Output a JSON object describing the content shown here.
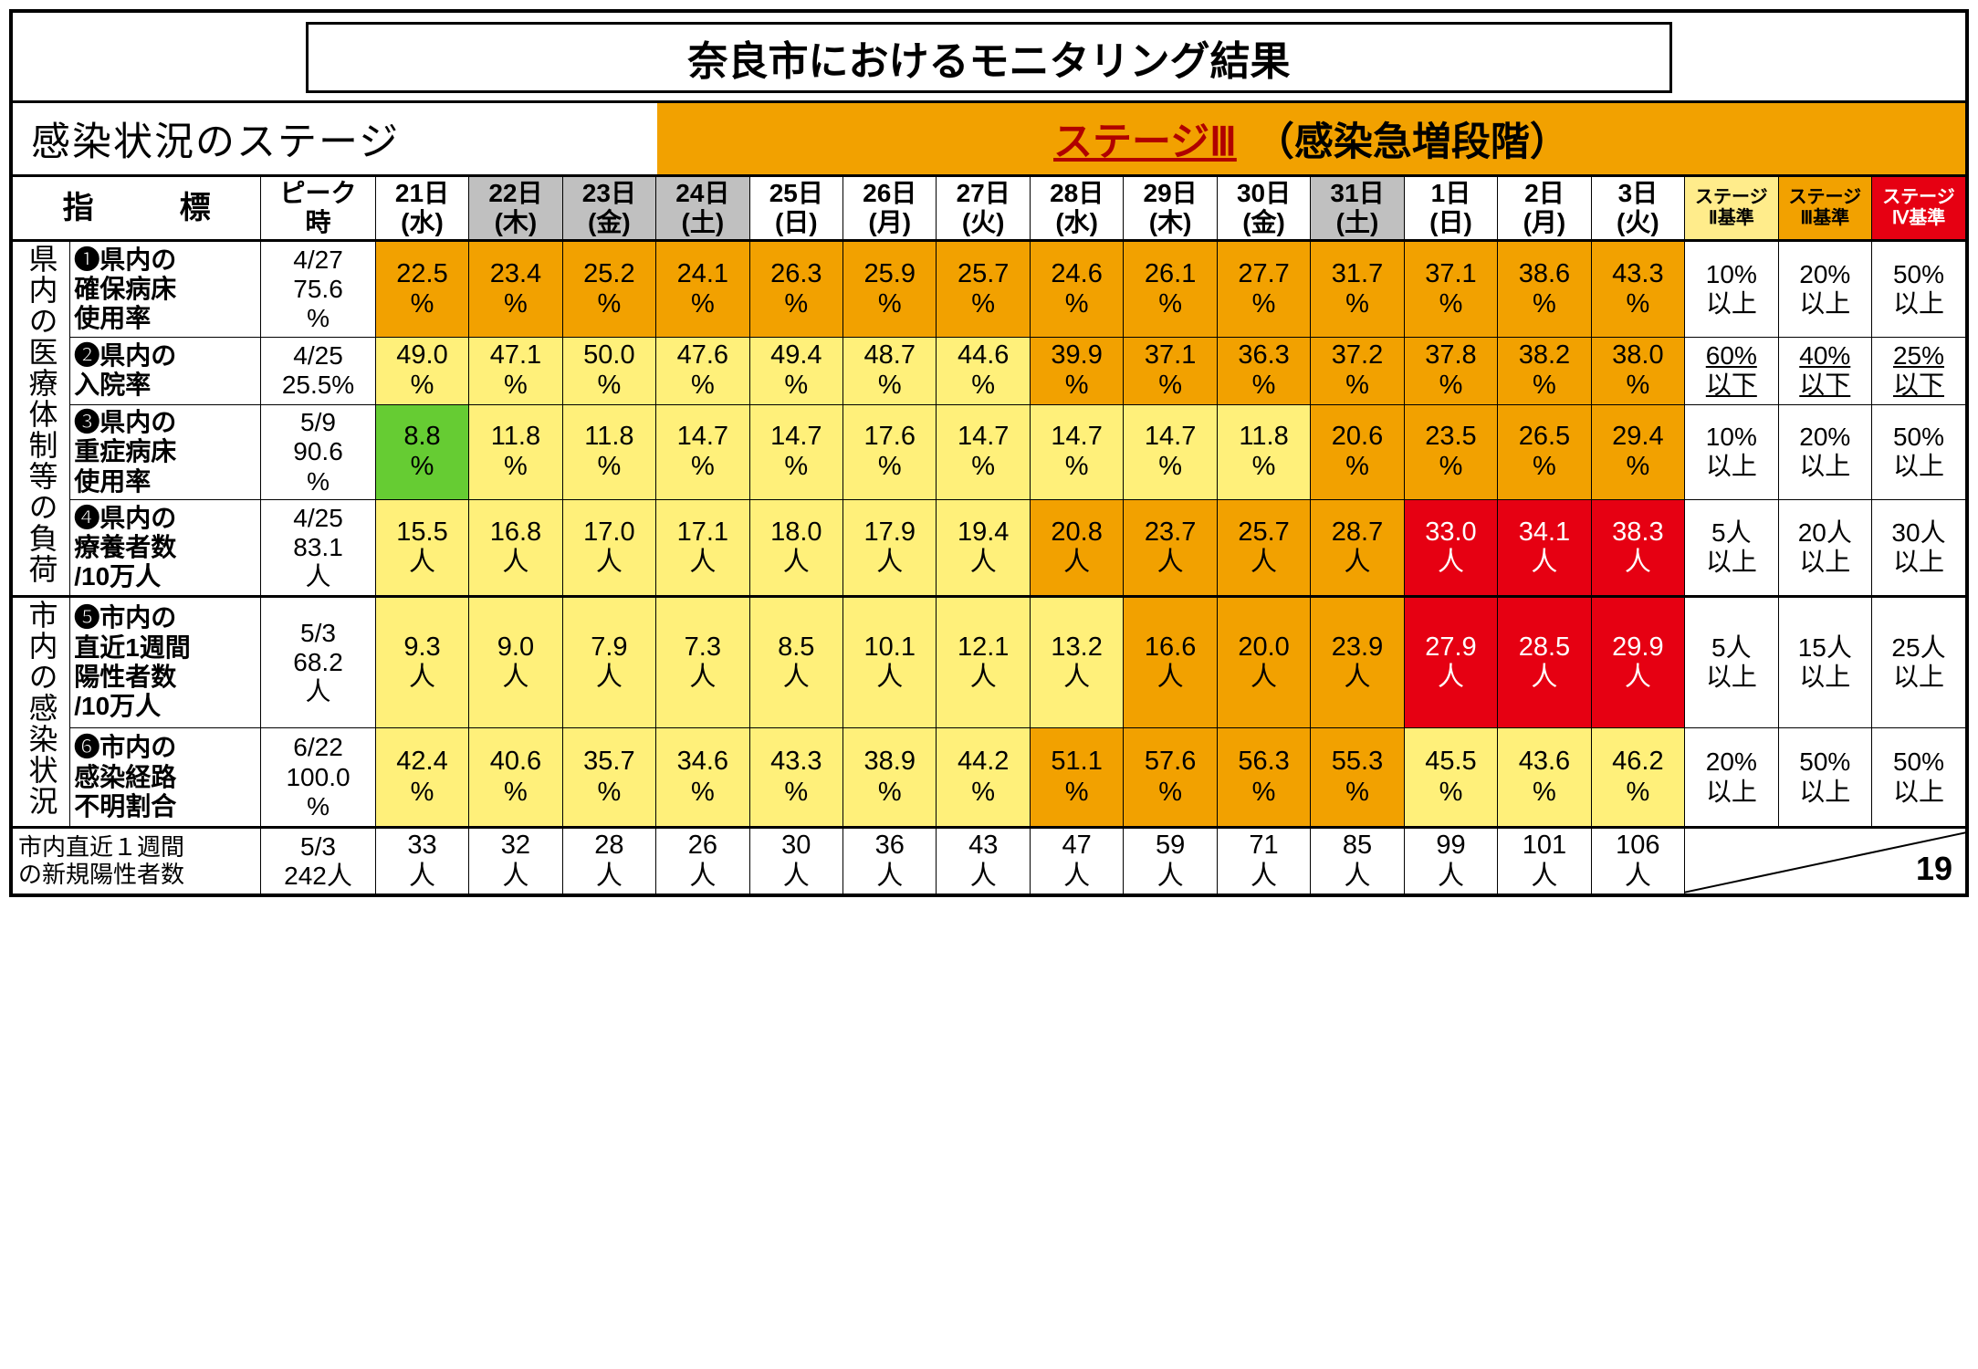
{
  "title": "奈良市におけるモニタリング結果",
  "stage": {
    "left_label": "感染状況のステージ",
    "main": "ステージⅢ",
    "sub": "（感染急増段階）"
  },
  "colors": {
    "green": "#66cc33",
    "yellow": "#fff07a",
    "orange": "#f2a100",
    "red": "#e60012",
    "gray": "#c0c0c0",
    "stg2": "#ffec8b",
    "stg3": "#f2a100",
    "stg4": "#e60012"
  },
  "headers": {
    "indicator": "指　標",
    "peak": "ピーク時",
    "days": [
      {
        "top": "21日",
        "bot": "(水)",
        "gray": false
      },
      {
        "top": "22日",
        "bot": "(木)",
        "gray": true
      },
      {
        "top": "23日",
        "bot": "(金)",
        "gray": true
      },
      {
        "top": "24日",
        "bot": "(土)",
        "gray": true
      },
      {
        "top": "25日",
        "bot": "(日)",
        "gray": false
      },
      {
        "top": "26日",
        "bot": "(月)",
        "gray": false
      },
      {
        "top": "27日",
        "bot": "(火)",
        "gray": false
      },
      {
        "top": "28日",
        "bot": "(水)",
        "gray": false
      },
      {
        "top": "29日",
        "bot": "(木)",
        "gray": false
      },
      {
        "top": "30日",
        "bot": "(金)",
        "gray": false
      },
      {
        "top": "31日",
        "bot": "(土)",
        "gray": true
      },
      {
        "top": "1日",
        "bot": "(日)",
        "gray": false
      },
      {
        "top": "2日",
        "bot": "(月)",
        "gray": false
      },
      {
        "top": "3日",
        "bot": "(火)",
        "gray": false
      }
    ],
    "stages": [
      {
        "t1": "ステージ",
        "t2": "Ⅱ基準"
      },
      {
        "t1": "ステージ",
        "t2": "Ⅲ基準"
      },
      {
        "t1": "ステージ",
        "t2": "Ⅳ基準"
      }
    ]
  },
  "groups": [
    {
      "label": "県内の医療体制等の負荷",
      "rowspan": 4
    },
    {
      "label": "市内の感染状況",
      "rowspan": 2
    }
  ],
  "rows": [
    {
      "num": "❶",
      "label": "県内の確保病床使用率",
      "peak": "4/27\n75.6\n%",
      "cells": [
        {
          "v": "22.5",
          "u": "%",
          "c": "orange"
        },
        {
          "v": "23.4",
          "u": "%",
          "c": "orange"
        },
        {
          "v": "25.2",
          "u": "%",
          "c": "orange"
        },
        {
          "v": "24.1",
          "u": "%",
          "c": "orange"
        },
        {
          "v": "26.3",
          "u": "%",
          "c": "orange"
        },
        {
          "v": "25.9",
          "u": "%",
          "c": "orange"
        },
        {
          "v": "25.7",
          "u": "%",
          "c": "orange"
        },
        {
          "v": "24.6",
          "u": "%",
          "c": "orange"
        },
        {
          "v": "26.1",
          "u": "%",
          "c": "orange"
        },
        {
          "v": "27.7",
          "u": "%",
          "c": "orange"
        },
        {
          "v": "31.7",
          "u": "%",
          "c": "orange"
        },
        {
          "v": "37.1",
          "u": "%",
          "c": "orange"
        },
        {
          "v": "38.6",
          "u": "%",
          "c": "orange"
        },
        {
          "v": "43.3",
          "u": "%",
          "c": "orange"
        }
      ],
      "criteria": [
        "10%\n以上",
        "20%\n以上",
        "50%\n以上"
      ]
    },
    {
      "num": "❷",
      "label": "県内の入院率",
      "peak": "4/25\n25.5%",
      "cells": [
        {
          "v": "49.0",
          "u": "%",
          "c": "yellow"
        },
        {
          "v": "47.1",
          "u": "%",
          "c": "yellow"
        },
        {
          "v": "50.0",
          "u": "%",
          "c": "yellow"
        },
        {
          "v": "47.6",
          "u": "%",
          "c": "yellow"
        },
        {
          "v": "49.4",
          "u": "%",
          "c": "yellow"
        },
        {
          "v": "48.7",
          "u": "%",
          "c": "yellow"
        },
        {
          "v": "44.6",
          "u": "%",
          "c": "yellow"
        },
        {
          "v": "39.9",
          "u": "%",
          "c": "orange"
        },
        {
          "v": "37.1",
          "u": "%",
          "c": "orange"
        },
        {
          "v": "36.3",
          "u": "%",
          "c": "orange"
        },
        {
          "v": "37.2",
          "u": "%",
          "c": "orange"
        },
        {
          "v": "37.8",
          "u": "%",
          "c": "orange"
        },
        {
          "v": "38.2",
          "u": "%",
          "c": "orange"
        },
        {
          "v": "38.0",
          "u": "%",
          "c": "orange"
        }
      ],
      "criteria_under": true,
      "criteria": [
        "60%\n以下",
        "40%\n以下",
        "25%\n以下"
      ]
    },
    {
      "num": "❸",
      "label": "県内の重症病床使用率",
      "peak": "5/9\n90.6\n%",
      "cells": [
        {
          "v": "8.8",
          "u": "%",
          "c": "green"
        },
        {
          "v": "11.8",
          "u": "%",
          "c": "yellow"
        },
        {
          "v": "11.8",
          "u": "%",
          "c": "yellow"
        },
        {
          "v": "14.7",
          "u": "%",
          "c": "yellow"
        },
        {
          "v": "14.7",
          "u": "%",
          "c": "yellow"
        },
        {
          "v": "17.6",
          "u": "%",
          "c": "yellow"
        },
        {
          "v": "14.7",
          "u": "%",
          "c": "yellow"
        },
        {
          "v": "14.7",
          "u": "%",
          "c": "yellow"
        },
        {
          "v": "14.7",
          "u": "%",
          "c": "yellow"
        },
        {
          "v": "11.8",
          "u": "%",
          "c": "yellow"
        },
        {
          "v": "20.6",
          "u": "%",
          "c": "orange"
        },
        {
          "v": "23.5",
          "u": "%",
          "c": "orange"
        },
        {
          "v": "26.5",
          "u": "%",
          "c": "orange"
        },
        {
          "v": "29.4",
          "u": "%",
          "c": "orange"
        }
      ],
      "criteria": [
        "10%\n以上",
        "20%\n以上",
        "50%\n以上"
      ]
    },
    {
      "num": "❹",
      "label": "県内の療養者数/10万人",
      "peak": "4/25\n83.1\n人",
      "cells": [
        {
          "v": "15.5",
          "u": "人",
          "c": "yellow"
        },
        {
          "v": "16.8",
          "u": "人",
          "c": "yellow"
        },
        {
          "v": "17.0",
          "u": "人",
          "c": "yellow"
        },
        {
          "v": "17.1",
          "u": "人",
          "c": "yellow"
        },
        {
          "v": "18.0",
          "u": "人",
          "c": "yellow"
        },
        {
          "v": "17.9",
          "u": "人",
          "c": "yellow"
        },
        {
          "v": "19.4",
          "u": "人",
          "c": "yellow"
        },
        {
          "v": "20.8",
          "u": "人",
          "c": "orange"
        },
        {
          "v": "23.7",
          "u": "人",
          "c": "orange"
        },
        {
          "v": "25.7",
          "u": "人",
          "c": "orange"
        },
        {
          "v": "28.7",
          "u": "人",
          "c": "orange"
        },
        {
          "v": "33.0",
          "u": "人",
          "c": "red"
        },
        {
          "v": "34.1",
          "u": "人",
          "c": "red"
        },
        {
          "v": "38.3",
          "u": "人",
          "c": "red"
        }
      ],
      "criteria": [
        "5人\n以上",
        "20人\n以上",
        "30人\n以上"
      ]
    },
    {
      "num": "❺",
      "label": "市内の直近1週間陽性者数/10万人",
      "peak": "5/3\n68.2\n人",
      "cells": [
        {
          "v": "9.3",
          "u": "人",
          "c": "yellow"
        },
        {
          "v": "9.0",
          "u": "人",
          "c": "yellow"
        },
        {
          "v": "7.9",
          "u": "人",
          "c": "yellow"
        },
        {
          "v": "7.3",
          "u": "人",
          "c": "yellow"
        },
        {
          "v": "8.5",
          "u": "人",
          "c": "yellow"
        },
        {
          "v": "10.1",
          "u": "人",
          "c": "yellow"
        },
        {
          "v": "12.1",
          "u": "人",
          "c": "yellow"
        },
        {
          "v": "13.2",
          "u": "人",
          "c": "yellow"
        },
        {
          "v": "16.6",
          "u": "人",
          "c": "orange"
        },
        {
          "v": "20.0",
          "u": "人",
          "c": "orange"
        },
        {
          "v": "23.9",
          "u": "人",
          "c": "orange"
        },
        {
          "v": "27.9",
          "u": "人",
          "c": "red"
        },
        {
          "v": "28.5",
          "u": "人",
          "c": "red"
        },
        {
          "v": "29.9",
          "u": "人",
          "c": "red"
        }
      ],
      "criteria": [
        "5人\n以上",
        "15人\n以上",
        "25人\n以上"
      ]
    },
    {
      "num": "❻",
      "label": "市内の感染経路不明割合",
      "peak": "6/22\n100.0\n%",
      "cells": [
        {
          "v": "42.4",
          "u": "%",
          "c": "yellow"
        },
        {
          "v": "40.6",
          "u": "%",
          "c": "yellow"
        },
        {
          "v": "35.7",
          "u": "%",
          "c": "yellow"
        },
        {
          "v": "34.6",
          "u": "%",
          "c": "yellow"
        },
        {
          "v": "43.3",
          "u": "%",
          "c": "yellow"
        },
        {
          "v": "38.9",
          "u": "%",
          "c": "yellow"
        },
        {
          "v": "44.2",
          "u": "%",
          "c": "yellow"
        },
        {
          "v": "51.1",
          "u": "%",
          "c": "orange"
        },
        {
          "v": "57.6",
          "u": "%",
          "c": "orange"
        },
        {
          "v": "56.3",
          "u": "%",
          "c": "orange"
        },
        {
          "v": "55.3",
          "u": "%",
          "c": "orange"
        },
        {
          "v": "45.5",
          "u": "%",
          "c": "yellow"
        },
        {
          "v": "43.6",
          "u": "%",
          "c": "yellow"
        },
        {
          "v": "46.2",
          "u": "%",
          "c": "yellow"
        }
      ],
      "criteria": [
        "20%\n以上",
        "50%\n以上",
        "50%\n以上"
      ]
    }
  ],
  "bottom": {
    "label": "市内直近１週間の新規陽性者数",
    "peak": "5/3\n242人",
    "cells": [
      "33\n人",
      "32\n人",
      "28\n人",
      "26\n人",
      "30\n人",
      "36\n人",
      "43\n人",
      "47\n人",
      "59\n人",
      "71\n人",
      "85\n人",
      "99\n人",
      "101\n人",
      "106\n人"
    ]
  },
  "page_num": "19"
}
